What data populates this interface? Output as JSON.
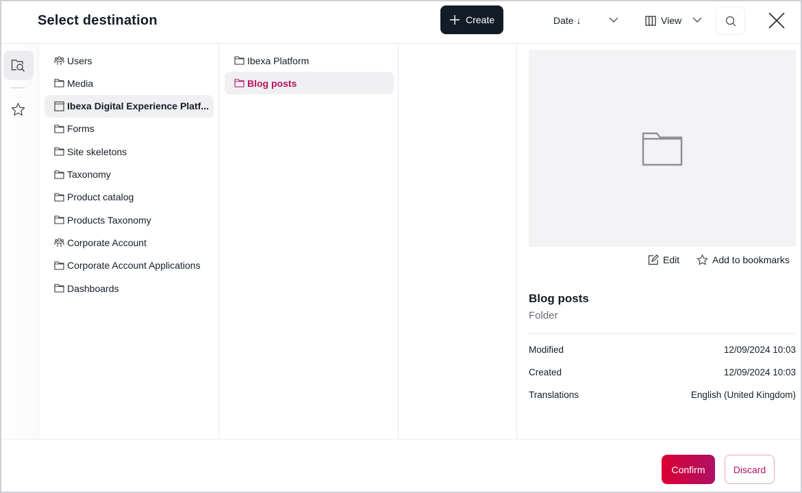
{
  "header": {
    "title": "Select destination",
    "create_label": "Create",
    "sort_label": "Date ↓",
    "view_label": "View"
  },
  "rail": {
    "items": [
      {
        "icon": "browse-icon"
      },
      {
        "icon": "star-icon"
      }
    ]
  },
  "column1": [
    {
      "label": "Users",
      "icon": "users-icon"
    },
    {
      "label": "Media",
      "icon": "folder-icon"
    },
    {
      "label": "Ibexa Digital Experience Platf...",
      "icon": "page-icon",
      "selected": true
    },
    {
      "label": "Forms",
      "icon": "folder-icon"
    },
    {
      "label": "Site skeletons",
      "icon": "folder-icon"
    },
    {
      "label": "Taxonomy",
      "icon": "folder-icon"
    },
    {
      "label": "Product catalog",
      "icon": "folder-icon"
    },
    {
      "label": "Products Taxonomy",
      "icon": "folder-icon"
    },
    {
      "label": "Corporate Account",
      "icon": "users-icon"
    },
    {
      "label": "Corporate Account Applications",
      "icon": "folder-icon"
    },
    {
      "label": "Dashboards",
      "icon": "folder-icon"
    }
  ],
  "column2": [
    {
      "label": "Ibexa Platform",
      "icon": "folder-icon"
    },
    {
      "label": "Blog posts",
      "icon": "folder-icon",
      "active": true
    }
  ],
  "details": {
    "edit_label": "Edit",
    "bookmark_label": "Add to bookmarks",
    "name": "Blog posts",
    "type": "Folder",
    "rows": [
      {
        "label": "Modified",
        "value": "12/09/2024 10:03"
      },
      {
        "label": "Created",
        "value": "12/09/2024 10:03"
      },
      {
        "label": "Translations",
        "value": "English (United Kingdom)"
      }
    ]
  },
  "footer": {
    "confirm_label": "Confirm",
    "discard_label": "Discard"
  },
  "colors": {
    "accent": "#ae1164",
    "confirm_start": "#db0032",
    "dark": "#131c26"
  }
}
